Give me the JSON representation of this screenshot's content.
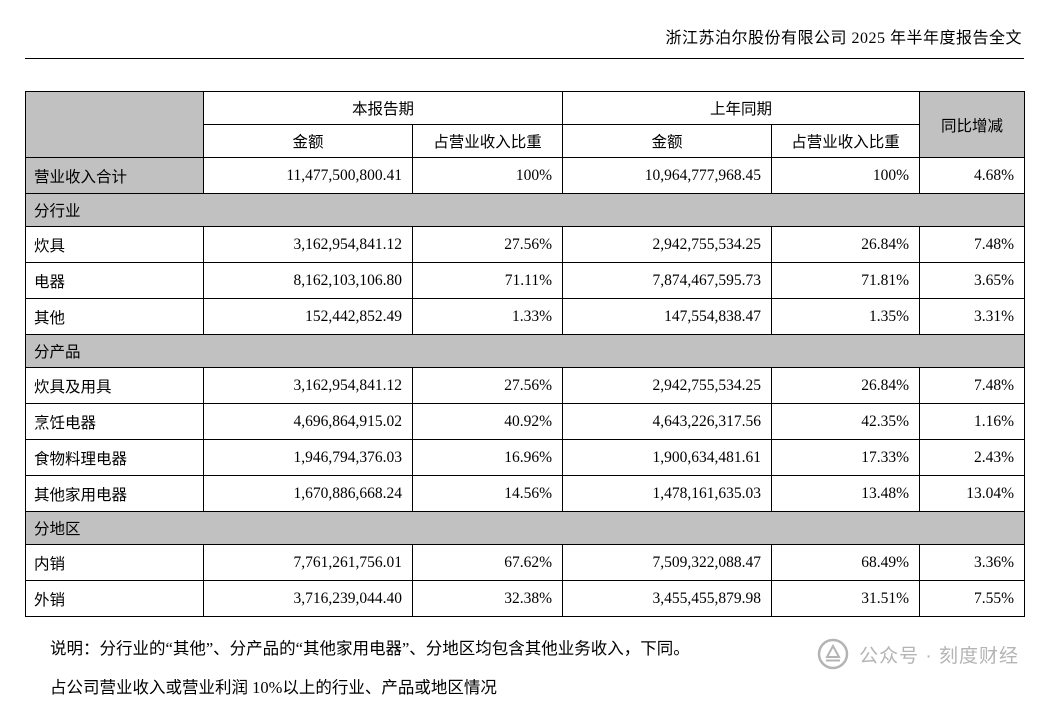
{
  "header": {
    "title": "浙江苏泊尔股份有限公司 2025 年半年度报告全文"
  },
  "table": {
    "headers": {
      "current_period": "本报告期",
      "prior_period": "上年同期",
      "amount": "金额",
      "pct_of_revenue": "占营业收入比重",
      "yoy_change": "同比增减"
    },
    "rows": [
      {
        "type": "data",
        "label": "营业收入合计",
        "label_gray": true,
        "cells": [
          "11,477,500,800.41",
          "100%",
          "10,964,777,968.45",
          "100%",
          "4.68%"
        ]
      },
      {
        "type": "section",
        "label": "分行业"
      },
      {
        "type": "data",
        "label": "炊具",
        "cells": [
          "3,162,954,841.12",
          "27.56%",
          "2,942,755,534.25",
          "26.84%",
          "7.48%"
        ]
      },
      {
        "type": "data",
        "label": "电器",
        "cells": [
          "8,162,103,106.80",
          "71.11%",
          "7,874,467,595.73",
          "71.81%",
          "3.65%"
        ]
      },
      {
        "type": "data",
        "label": "其他",
        "cells": [
          "152,442,852.49",
          "1.33%",
          "147,554,838.47",
          "1.35%",
          "3.31%"
        ]
      },
      {
        "type": "section",
        "label": "分产品"
      },
      {
        "type": "data",
        "label": "炊具及用具",
        "cells": [
          "3,162,954,841.12",
          "27.56%",
          "2,942,755,534.25",
          "26.84%",
          "7.48%"
        ]
      },
      {
        "type": "data",
        "label": "烹饪电器",
        "cells": [
          "4,696,864,915.02",
          "40.92%",
          "4,643,226,317.56",
          "42.35%",
          "1.16%"
        ]
      },
      {
        "type": "data",
        "label": "食物料理电器",
        "cells": [
          "1,946,794,376.03",
          "16.96%",
          "1,900,634,481.61",
          "17.33%",
          "2.43%"
        ]
      },
      {
        "type": "data",
        "label": "其他家用电器",
        "cells": [
          "1,670,886,668.24",
          "14.56%",
          "1,478,161,635.03",
          "13.48%",
          "13.04%"
        ]
      },
      {
        "type": "section",
        "label": "分地区"
      },
      {
        "type": "data",
        "label": "内销",
        "cells": [
          "7,761,261,756.01",
          "67.62%",
          "7,509,322,088.47",
          "68.49%",
          "3.36%"
        ]
      },
      {
        "type": "data",
        "label": "外销",
        "cells": [
          "3,716,239,044.40",
          "32.38%",
          "3,455,455,879.98",
          "31.51%",
          "7.55%"
        ]
      }
    ]
  },
  "notes": {
    "line1": "说明：分行业的“其他”、分产品的“其他家用电器”、分地区均包含其他业务收入，下同。",
    "line2": "占公司营业收入或营业利润 10%以上的行业、产品或地区情况"
  },
  "watermark": {
    "text": "公众号 · 刻度财经"
  },
  "colors": {
    "table_section_gray": "#c1c1c1",
    "watermark_gray": "#b4b4b4",
    "border": "#000000"
  }
}
